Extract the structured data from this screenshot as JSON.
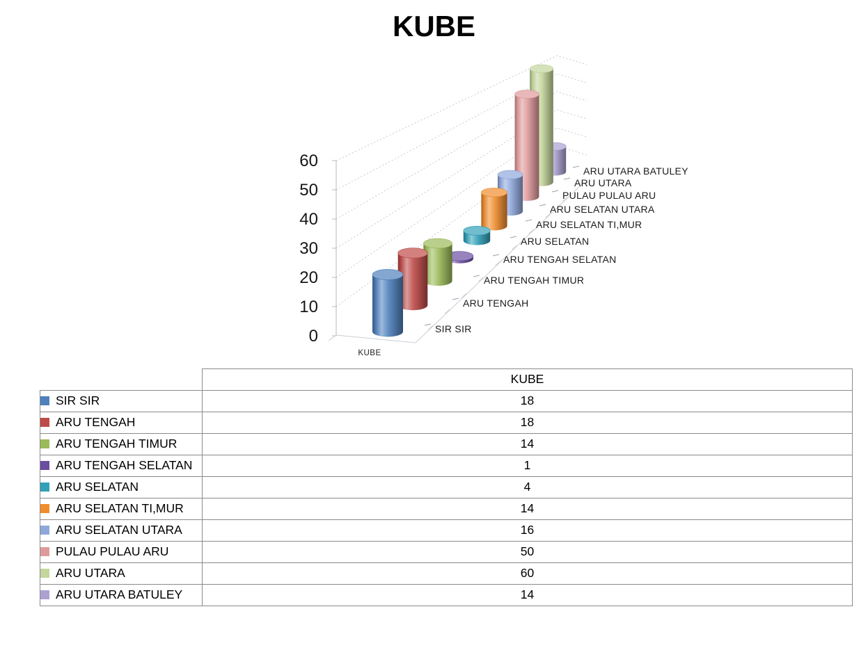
{
  "chart_data": {
    "type": "bar",
    "subtype": "3d-cylinder",
    "title": "KUBE",
    "series_name": "KUBE",
    "categories": [
      "SIR SIR",
      "ARU TENGAH",
      "ARU TENGAH TIMUR",
      "ARU TENGAH SELATAN",
      "ARU SELATAN",
      "ARU SELATAN TI,MUR",
      "ARU SELATAN UTARA",
      "PULAU PULAU ARU",
      "ARU UTARA",
      "ARU UTARA BATULEY"
    ],
    "values": [
      18,
      18,
      14,
      1,
      4,
      14,
      16,
      50,
      60,
      14
    ],
    "floor_axis_label": "KUBE",
    "ylim": [
      0,
      60
    ],
    "yticks": [
      0,
      10,
      20,
      30,
      40,
      50,
      60
    ],
    "grid": "dashed-3d-perspective",
    "legend_position": "table-below",
    "colors": [
      "#4F81BD",
      "#BE4B48",
      "#9BBB59",
      "#6B4EA0",
      "#31A0B8",
      "#F08C2E",
      "#8FA8DC",
      "#E09A9B",
      "#C3D69B",
      "#ACA0D1"
    ]
  },
  "table": {
    "value_column_header": "KUBE"
  }
}
